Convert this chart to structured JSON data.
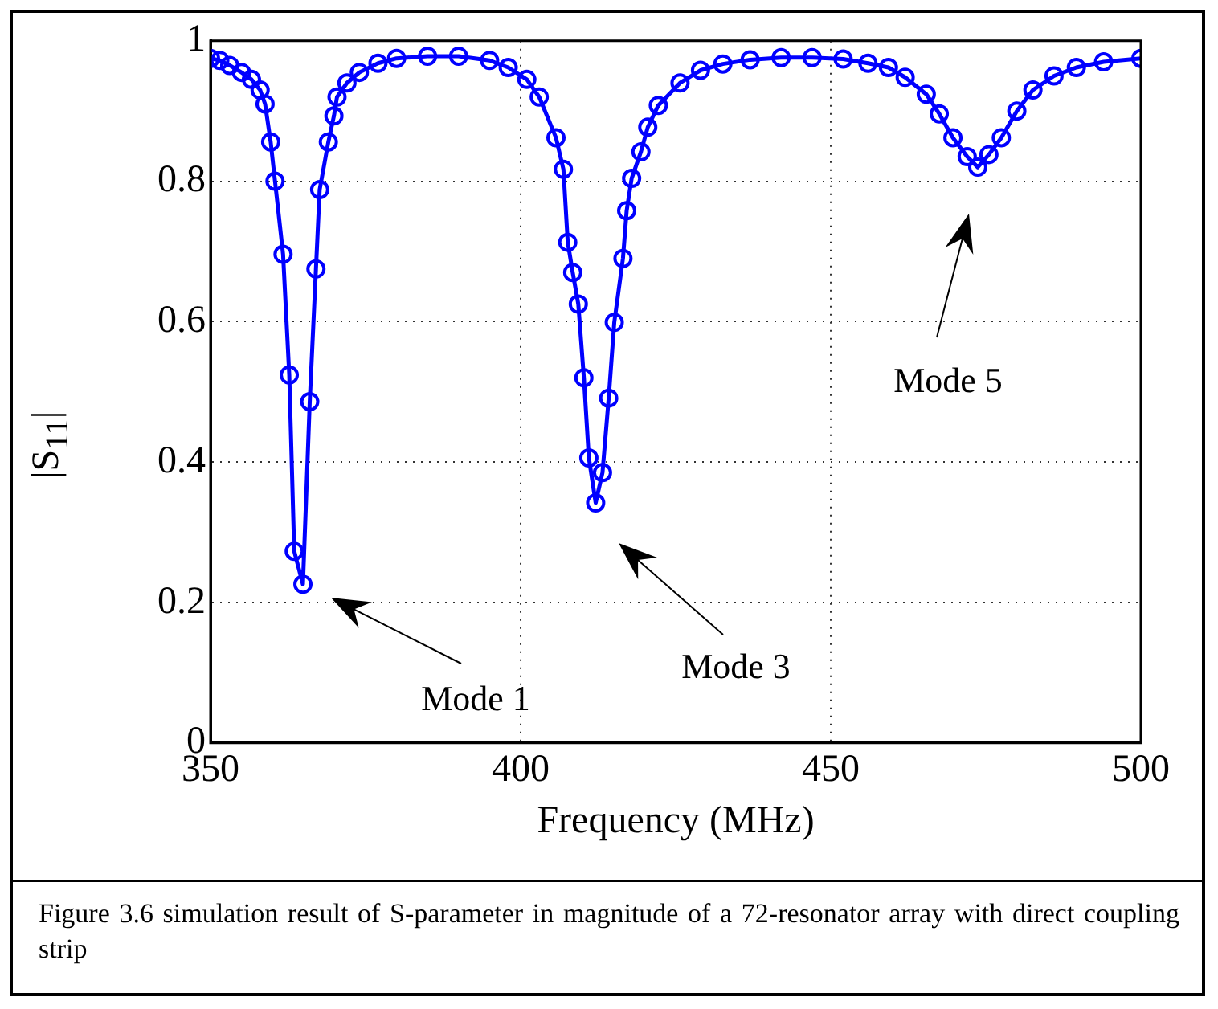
{
  "chart_data": {
    "type": "line",
    "xlabel": "Frequency (MHz)",
    "ylabel": "|S$_{11}$|",
    "x": [
      350,
      351.5,
      353.1,
      355,
      356.6,
      358,
      358.8,
      359.7,
      360.4,
      361.7,
      362.7,
      363.5,
      364.9,
      366,
      367,
      367.6,
      369,
      369.9,
      370.4,
      372,
      374,
      377,
      380,
      385,
      390,
      395,
      398,
      401,
      403,
      405.7,
      406.9,
      407.6,
      408.4,
      409.3,
      410.2,
      411,
      412.1,
      413.2,
      414.2,
      415.1,
      416.5,
      417.1,
      417.9,
      419.4,
      420.5,
      422.2,
      425.7,
      429,
      432.6,
      437,
      442,
      447,
      452,
      456,
      459.3,
      462,
      465.4,
      467.5,
      469.7,
      472,
      473.7,
      475.5,
      477.5,
      480,
      482.6,
      486,
      489.6,
      494,
      500
    ],
    "series": [
      {
        "color": "#0000ff",
        "values": [
          0.975,
          0.972,
          0.965,
          0.955,
          0.945,
          0.93,
          0.91,
          0.856,
          0.8,
          0.696,
          0.524,
          0.273,
          0.226,
          0.486,
          0.675,
          0.788,
          0.856,
          0.893,
          0.92,
          0.94,
          0.955,
          0.968,
          0.975,
          0.978,
          0.978,
          0.972,
          0.962,
          0.945,
          0.92,
          0.862,
          0.817,
          0.713,
          0.67,
          0.625,
          0.52,
          0.406,
          0.342,
          0.385,
          0.491,
          0.599,
          0.69,
          0.758,
          0.804,
          0.842,
          0.877,
          0.908,
          0.94,
          0.958,
          0.967,
          0.973,
          0.976,
          0.976,
          0.974,
          0.968,
          0.962,
          0.948,
          0.924,
          0.896,
          0.862,
          0.835,
          0.82,
          0.838,
          0.862,
          0.9,
          0.93,
          0.95,
          0.962,
          0.97,
          0.975
        ]
      }
    ],
    "xlim": [
      350,
      500
    ],
    "ylim": [
      0,
      1
    ],
    "xticks": [
      350,
      400,
      450,
      500
    ],
    "yticks": [
      0,
      0.2,
      0.4,
      0.6,
      0.8,
      1
    ],
    "grid": true,
    "marker": "circle",
    "line_style": "solid",
    "legend": false,
    "annotations": [
      "Mode 1",
      "Mode 3",
      "Mode 5",
      "Figure 3.6 simulation result of S-parameter in magnitude of a 72-resonator array with direct coupling strip"
    ]
  }
}
